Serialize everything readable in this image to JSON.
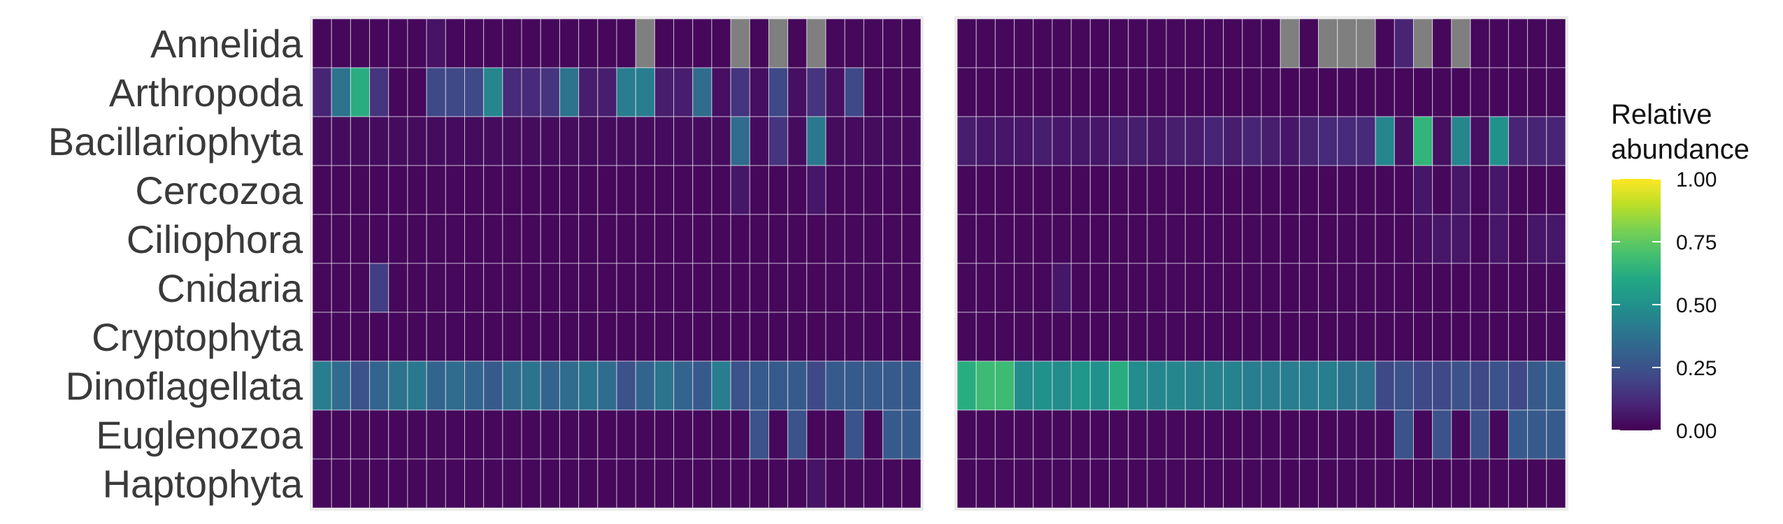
{
  "chart_data": {
    "type": "heatmap",
    "rows": [
      "Annelida",
      "Arthropoda",
      "Bacillariophyta",
      "Cercozoa",
      "Ciliophora",
      "Cnidaria",
      "Cryptophyta",
      "Dinoflagellata",
      "Euglenozoa",
      "Haptophyta"
    ],
    "colorscale": "viridis",
    "na_color": "#7f7f7f",
    "panels": [
      {
        "values": [
          [
            0.02,
            0.02,
            0.02,
            0.02,
            0.02,
            0.02,
            0.05,
            0.02,
            0.02,
            0.02,
            0.02,
            0.02,
            0.02,
            0.02,
            0.02,
            0.02,
            0.02,
            null,
            0.02,
            0.02,
            0.02,
            0.02,
            null,
            0.02,
            null,
            0.02,
            null,
            0.02,
            0.02,
            0.02,
            0.02,
            0.02
          ],
          [
            0.1,
            0.38,
            0.62,
            0.15,
            0.02,
            0.02,
            0.22,
            0.22,
            0.22,
            0.45,
            0.12,
            0.12,
            0.15,
            0.38,
            0.08,
            0.08,
            0.42,
            0.42,
            0.08,
            0.08,
            0.35,
            0.04,
            0.15,
            0.04,
            0.22,
            0.04,
            0.15,
            0.04,
            0.22,
            0.02,
            0.02,
            0.02
          ],
          [
            0.03,
            0.03,
            0.03,
            0.03,
            0.03,
            0.03,
            0.03,
            0.03,
            0.03,
            0.03,
            0.03,
            0.03,
            0.03,
            0.03,
            0.03,
            0.03,
            0.03,
            0.03,
            0.03,
            0.03,
            0.03,
            0.03,
            0.35,
            0.03,
            0.15,
            0.03,
            0.4,
            0.03,
            0.03,
            0.03,
            0.03,
            0.03
          ],
          [
            0.02,
            0.02,
            0.02,
            0.02,
            0.02,
            0.02,
            0.02,
            0.02,
            0.02,
            0.02,
            0.02,
            0.02,
            0.02,
            0.02,
            0.02,
            0.02,
            0.02,
            0.02,
            0.02,
            0.02,
            0.02,
            0.02,
            0.06,
            0.02,
            0.02,
            0.02,
            0.06,
            0.02,
            0.02,
            0.02,
            0.02,
            0.02
          ],
          [
            0.02,
            0.02,
            0.02,
            0.02,
            0.02,
            0.02,
            0.02,
            0.02,
            0.02,
            0.02,
            0.02,
            0.02,
            0.02,
            0.02,
            0.02,
            0.02,
            0.02,
            0.02,
            0.02,
            0.02,
            0.02,
            0.02,
            0.02,
            0.02,
            0.02,
            0.02,
            0.02,
            0.02,
            0.02,
            0.02,
            0.02,
            0.02
          ],
          [
            0.02,
            0.02,
            0.02,
            0.18,
            0.02,
            0.02,
            0.02,
            0.02,
            0.02,
            0.02,
            0.02,
            0.02,
            0.02,
            0.02,
            0.02,
            0.02,
            0.02,
            0.02,
            0.02,
            0.02,
            0.02,
            0.02,
            0.02,
            0.02,
            0.02,
            0.02,
            0.02,
            0.02,
            0.02,
            0.02,
            0.02,
            0.02
          ],
          [
            0.02,
            0.02,
            0.02,
            0.02,
            0.02,
            0.02,
            0.02,
            0.02,
            0.02,
            0.02,
            0.02,
            0.02,
            0.02,
            0.02,
            0.02,
            0.02,
            0.02,
            0.02,
            0.02,
            0.02,
            0.02,
            0.02,
            0.02,
            0.02,
            0.02,
            0.02,
            0.02,
            0.02,
            0.02,
            0.02,
            0.02,
            0.02
          ],
          [
            0.42,
            0.35,
            0.25,
            0.32,
            0.38,
            0.4,
            0.32,
            0.35,
            0.32,
            0.28,
            0.35,
            0.38,
            0.32,
            0.35,
            0.38,
            0.35,
            0.25,
            0.32,
            0.38,
            0.32,
            0.28,
            0.42,
            0.25,
            0.28,
            0.28,
            0.28,
            0.22,
            0.28,
            0.28,
            0.28,
            0.28,
            0.28
          ],
          [
            0.02,
            0.02,
            0.02,
            0.02,
            0.02,
            0.02,
            0.02,
            0.02,
            0.02,
            0.02,
            0.02,
            0.02,
            0.02,
            0.02,
            0.02,
            0.02,
            0.02,
            0.02,
            0.02,
            0.02,
            0.02,
            0.02,
            0.02,
            0.25,
            0.02,
            0.25,
            0.02,
            0.02,
            0.25,
            0.02,
            0.28,
            0.28
          ],
          [
            0.02,
            0.02,
            0.02,
            0.02,
            0.02,
            0.02,
            0.02,
            0.02,
            0.02,
            0.02,
            0.02,
            0.02,
            0.02,
            0.02,
            0.02,
            0.02,
            0.02,
            0.02,
            0.02,
            0.02,
            0.02,
            0.02,
            0.02,
            0.02,
            0.02,
            0.02,
            0.05,
            0.02,
            0.02,
            0.02,
            0.02,
            0.02
          ]
        ]
      },
      {
        "values": [
          [
            0.02,
            0.02,
            0.02,
            0.02,
            0.02,
            0.02,
            0.02,
            0.02,
            0.02,
            0.02,
            0.02,
            0.02,
            0.02,
            0.02,
            0.02,
            0.02,
            0.02,
            null,
            0.02,
            null,
            null,
            null,
            0.02,
            0.1,
            null,
            0.02,
            null,
            0.02,
            0.02,
            0.02,
            0.02,
            0.02
          ],
          [
            0.02,
            0.02,
            0.02,
            0.02,
            0.02,
            0.02,
            0.02,
            0.02,
            0.02,
            0.02,
            0.02,
            0.02,
            0.02,
            0.02,
            0.02,
            0.02,
            0.02,
            0.02,
            0.02,
            0.02,
            0.02,
            0.02,
            0.02,
            0.02,
            0.02,
            0.02,
            0.02,
            0.02,
            0.02,
            0.02,
            0.02,
            0.02
          ],
          [
            0.08,
            0.06,
            0.06,
            0.06,
            0.08,
            0.06,
            0.06,
            0.06,
            0.08,
            0.08,
            0.06,
            0.08,
            0.08,
            0.1,
            0.08,
            0.1,
            0.08,
            0.06,
            0.1,
            0.12,
            0.12,
            0.12,
            0.45,
            0.04,
            0.65,
            0.04,
            0.45,
            0.04,
            0.5,
            0.1,
            0.1,
            0.1
          ],
          [
            0.02,
            0.02,
            0.02,
            0.02,
            0.02,
            0.02,
            0.02,
            0.02,
            0.02,
            0.02,
            0.02,
            0.02,
            0.02,
            0.02,
            0.02,
            0.02,
            0.02,
            0.02,
            0.02,
            0.02,
            0.02,
            0.02,
            0.02,
            0.02,
            0.06,
            0.02,
            0.06,
            0.02,
            0.06,
            0.02,
            0.02,
            0.02
          ],
          [
            0.02,
            0.02,
            0.02,
            0.02,
            0.02,
            0.02,
            0.02,
            0.02,
            0.02,
            0.02,
            0.02,
            0.02,
            0.02,
            0.02,
            0.02,
            0.02,
            0.02,
            0.02,
            0.02,
            0.02,
            0.02,
            0.02,
            0.02,
            0.02,
            0.04,
            0.06,
            0.06,
            0.02,
            0.06,
            0.02,
            0.06,
            0.06
          ],
          [
            0.02,
            0.02,
            0.02,
            0.02,
            0.02,
            0.06,
            0.02,
            0.02,
            0.02,
            0.02,
            0.02,
            0.02,
            0.02,
            0.02,
            0.02,
            0.02,
            0.02,
            0.02,
            0.02,
            0.02,
            0.02,
            0.02,
            0.02,
            0.02,
            0.02,
            0.02,
            0.02,
            0.02,
            0.02,
            0.02,
            0.02,
            0.02
          ],
          [
            0.02,
            0.02,
            0.02,
            0.02,
            0.02,
            0.02,
            0.02,
            0.02,
            0.02,
            0.02,
            0.02,
            0.02,
            0.02,
            0.02,
            0.02,
            0.02,
            0.02,
            0.02,
            0.02,
            0.02,
            0.02,
            0.02,
            0.02,
            0.02,
            0.02,
            0.02,
            0.02,
            0.02,
            0.02,
            0.02,
            0.02,
            0.02
          ],
          [
            0.62,
            0.68,
            0.68,
            0.48,
            0.5,
            0.48,
            0.52,
            0.5,
            0.62,
            0.48,
            0.46,
            0.46,
            0.44,
            0.44,
            0.44,
            0.42,
            0.42,
            0.42,
            0.42,
            0.42,
            0.38,
            0.38,
            0.22,
            0.25,
            0.22,
            0.22,
            0.25,
            0.22,
            0.25,
            0.22,
            0.28,
            0.3
          ],
          [
            0.02,
            0.02,
            0.02,
            0.02,
            0.02,
            0.02,
            0.02,
            0.02,
            0.02,
            0.02,
            0.02,
            0.02,
            0.02,
            0.02,
            0.02,
            0.02,
            0.02,
            0.02,
            0.02,
            0.02,
            0.02,
            0.02,
            0.02,
            0.25,
            0.02,
            0.25,
            0.02,
            0.25,
            0.02,
            0.28,
            0.28,
            0.28
          ],
          [
            0.02,
            0.02,
            0.02,
            0.02,
            0.02,
            0.02,
            0.02,
            0.02,
            0.02,
            0.02,
            0.02,
            0.02,
            0.02,
            0.02,
            0.02,
            0.02,
            0.02,
            0.02,
            0.02,
            0.02,
            0.02,
            0.02,
            0.02,
            0.02,
            0.02,
            0.02,
            0.02,
            0.02,
            0.02,
            0.02,
            0.02,
            0.02
          ]
        ]
      }
    ],
    "legend": {
      "title_lines": [
        "Relative",
        "abundance"
      ],
      "ticks": [
        "1.00",
        "0.75",
        "0.50",
        "0.25",
        "0.00"
      ],
      "tick_values": [
        1.0,
        0.75,
        0.5,
        0.25,
        0.0
      ],
      "range": [
        0,
        1
      ],
      "placement": "right"
    },
    "grid": true
  }
}
